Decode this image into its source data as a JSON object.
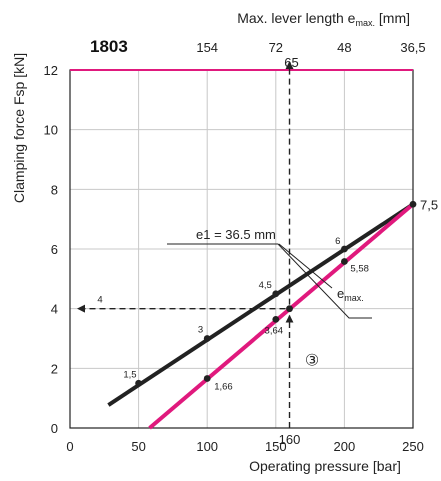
{
  "chart_data": {
    "type": "line",
    "code": "1803",
    "title": "",
    "xlabel": "Operating pressure [bar]",
    "ylabel": "Clamping force Fsp [kN]",
    "x2label_main": "Max. lever length e",
    "x2label_sub": "max.",
    "x2label_unit": " [mm]",
    "xlim": [
      0,
      250
    ],
    "ylim": [
      0,
      12
    ],
    "x_ticks": [
      "0",
      "50",
      "100",
      "150",
      "200",
      "250"
    ],
    "y_ticks": [
      "0",
      "2",
      "4",
      "6",
      "8",
      "10",
      "12"
    ],
    "x2_ticks": [
      {
        "x": 100,
        "label": "154"
      },
      {
        "x": 150,
        "label": "72"
      },
      {
        "x": 200,
        "label": "48"
      },
      {
        "x": 250,
        "label": "36,5"
      }
    ],
    "grid": true,
    "colors": {
      "black_line": "#222222",
      "magenta_line": "#e0197d",
      "limit_line": "#e0197d"
    },
    "limit_line": {
      "y": 12
    },
    "series": [
      {
        "name": "e1 = 36.5 mm",
        "color": "#222222",
        "line": [
          {
            "x": 28,
            "y": 0.77
          },
          {
            "x": 250,
            "y": 7.5
          }
        ],
        "points": [
          {
            "x": 50,
            "y": 1.5,
            "label": "1,5"
          },
          {
            "x": 100,
            "y": 3,
            "label": "3"
          },
          {
            "x": 150,
            "y": 4.5,
            "label": "4,5"
          },
          {
            "x": 200,
            "y": 6,
            "label": "6"
          },
          {
            "x": 250,
            "y": 7.5,
            "label": "7,5"
          }
        ]
      },
      {
        "name": "emax.",
        "name_main": "e",
        "name_sub": "max.",
        "color": "#e0197d",
        "line": [
          {
            "x": 58,
            "y": 0
          },
          {
            "x": 250,
            "y": 7.5
          }
        ],
        "points": [
          {
            "x": 100,
            "y": 1.66,
            "label": "1,66"
          },
          {
            "x": 150,
            "y": 3.64,
            "label": "3,64"
          },
          {
            "x": 200,
            "y": 5.58,
            "label": "5,58"
          }
        ]
      }
    ],
    "annotations": {
      "pressure_marker": {
        "x": 160,
        "label": "160"
      },
      "lever_marker": {
        "label": "65"
      },
      "force_marker": {
        "y": 4,
        "label": "4"
      },
      "intersection_point": {
        "x": 160,
        "y": 4
      },
      "step_marker": "③"
    }
  }
}
